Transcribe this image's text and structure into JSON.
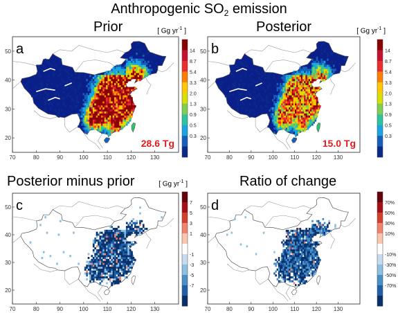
{
  "title_main": "Anthropogenic SO",
  "title_sub": "2",
  "title_end": " emission",
  "panels": [
    {
      "id": "a",
      "title": "Prior",
      "unit": "[ Gg yr",
      "unit_sup": "-1",
      "unit_close": "]",
      "total": "28.6 Tg",
      "colorbar": [
        "14",
        "8.7",
        "5.4",
        "3.3",
        "2.0",
        "1.3",
        "0.9",
        "0.5",
        "0.3"
      ],
      "colors": [
        "#8b0000",
        "#c8102e",
        "#ee2c2c",
        "#ff7f00",
        "#ffc800",
        "#d8e000",
        "#7fd04f",
        "#2ec4a0",
        "#1aa5e0",
        "#1560bd",
        "#0a2a8a"
      ]
    },
    {
      "id": "b",
      "title": "Posterior",
      "unit": "[ Gg yr",
      "unit_sup": "-1",
      "unit_close": "]",
      "total": "15.0 Tg",
      "colorbar": [
        "14",
        "8.7",
        "5.4",
        "3.3",
        "2.0",
        "1.3",
        "0.9",
        "0.5",
        "0.3"
      ],
      "colors": [
        "#8b0000",
        "#c8102e",
        "#ee2c2c",
        "#ff7f00",
        "#ffc800",
        "#d8e000",
        "#7fd04f",
        "#2ec4a0",
        "#1aa5e0",
        "#1560bd",
        "#0a2a8a"
      ]
    },
    {
      "id": "c",
      "title": "Posterior minus prior",
      "unit": "[ Gg yr",
      "unit_sup": "-1",
      "unit_close": "]",
      "total": "",
      "colorbar": [
        "7",
        "5",
        "3",
        "1",
        "-1",
        "-3",
        "-5",
        "-7"
      ],
      "colors": [
        "#67000d",
        "#a50f15",
        "#d6402b",
        "#f3826a",
        "#fcc5b0",
        "#ffffff",
        "#c6dbef",
        "#8dbfe0",
        "#4a90c8",
        "#1f60a8",
        "#08306b"
      ]
    },
    {
      "id": "d",
      "title": "Ratio of change",
      "unit": "",
      "unit_sup": "",
      "unit_close": "",
      "total": "",
      "colorbar": [
        "70%",
        "50%",
        "30%",
        "10%",
        "-10%",
        "-30%",
        "-50%",
        "-70%"
      ],
      "colors": [
        "#67000d",
        "#a50f15",
        "#d6402b",
        "#f3826a",
        "#fcc5b0",
        "#ffffff",
        "#c6dbef",
        "#8dbfe0",
        "#4a90c8",
        "#1f60a8",
        "#08306b"
      ]
    }
  ],
  "axes": {
    "lat_ticks": [
      "50",
      "40",
      "30",
      "20"
    ],
    "lon_ticks": [
      "70",
      "80",
      "90",
      "100",
      "110",
      "120",
      "130"
    ],
    "lon_range": [
      70,
      140
    ],
    "lat_range": [
      15,
      55
    ]
  }
}
